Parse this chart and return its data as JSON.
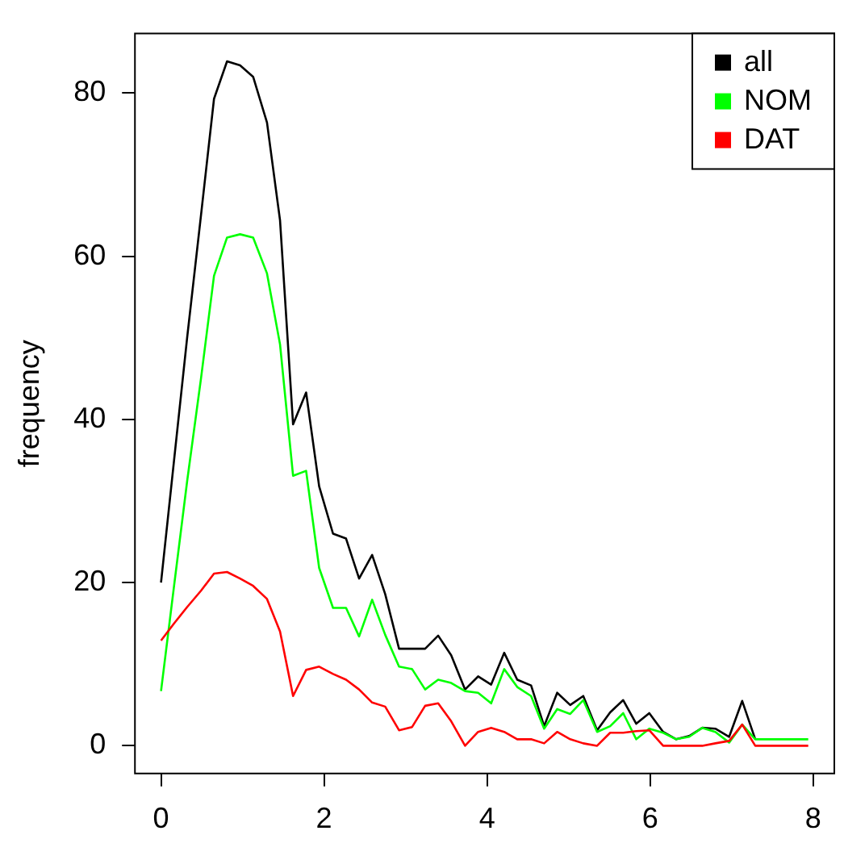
{
  "chart_data": {
    "type": "line",
    "ylabel": "frequency",
    "x": [
      0,
      0.16,
      0.32,
      0.49,
      0.65,
      0.81,
      0.97,
      1.13,
      1.3,
      1.46,
      1.62,
      1.78,
      1.94,
      2.11,
      2.27,
      2.43,
      2.59,
      2.75,
      2.92,
      3.08,
      3.24,
      3.4,
      3.56,
      3.73,
      3.89,
      4.05,
      4.21,
      4.37,
      4.54,
      4.7,
      4.86,
      5.02,
      5.18,
      5.35,
      5.51,
      5.67,
      5.83,
      5.99,
      6.16,
      6.32,
      6.48,
      6.64,
      6.8,
      6.97,
      7.13,
      7.29,
      7.45,
      7.61,
      7.78,
      7.94
    ],
    "series": [
      {
        "name": "all",
        "color": "#000000",
        "values": [
          20,
          35,
          50,
          65,
          79.3,
          83.9,
          83.4,
          82,
          76.4,
          64.4,
          39.4,
          43.3,
          31.8,
          26,
          25.4,
          20.5,
          23.4,
          18.6,
          11.9,
          11.9,
          11.9,
          13.5,
          11.1,
          6.9,
          8.5,
          7.5,
          11.4,
          8.1,
          7.4,
          2.4,
          6.5,
          5,
          6.1,
          1.9,
          4.1,
          5.6,
          2.7,
          4,
          1.7,
          0.8,
          1.2,
          2.2,
          2.1,
          1.1,
          5.5,
          0.8,
          null,
          null,
          null,
          null
        ]
      },
      {
        "name": "NOM",
        "color": "#00ff00",
        "values": [
          6.7,
          19.6,
          32.4,
          45,
          57.6,
          62.3,
          62.7,
          62.3,
          57.9,
          49.2,
          33.1,
          33.7,
          21.8,
          16.9,
          16.9,
          13.4,
          17.9,
          13.6,
          9.7,
          9.4,
          6.9,
          8.1,
          7.7,
          6.7,
          6.5,
          5.2,
          9.4,
          7.2,
          6.1,
          2.1,
          4.5,
          3.9,
          5.6,
          1.7,
          2.4,
          4,
          0.8,
          2.1,
          1.6,
          0.8,
          1.1,
          2.2,
          1.7,
          0.4,
          2.6,
          0.8,
          0.8,
          0.8,
          0.8,
          0.8
        ]
      },
      {
        "name": "DAT",
        "color": "#ff0000",
        "values": [
          12.9,
          15,
          17,
          19,
          21.1,
          21.3,
          20.5,
          19.6,
          18,
          14,
          6.1,
          9.3,
          9.7,
          8.8,
          8.1,
          6.9,
          5.3,
          4.8,
          1.9,
          2.3,
          4.9,
          5.2,
          3,
          0,
          1.7,
          2.2,
          1.7,
          0.8,
          0.8,
          0.3,
          1.7,
          0.8,
          0.3,
          0,
          1.6,
          1.6,
          1.8,
          1.9,
          0,
          0,
          0,
          0,
          0.3,
          0.6,
          2.6,
          0,
          0,
          0,
          0,
          0
        ]
      }
    ],
    "xlim": [
      -0.32,
      8.26
    ],
    "xticks": [
      0,
      2,
      4,
      6,
      8
    ],
    "ylim": [
      -3.4,
      87.3
    ],
    "yticks": [
      0,
      20,
      40,
      60,
      80
    ],
    "grid": false,
    "legend": "top right",
    "marker": "none",
    "line_style": "solid"
  }
}
